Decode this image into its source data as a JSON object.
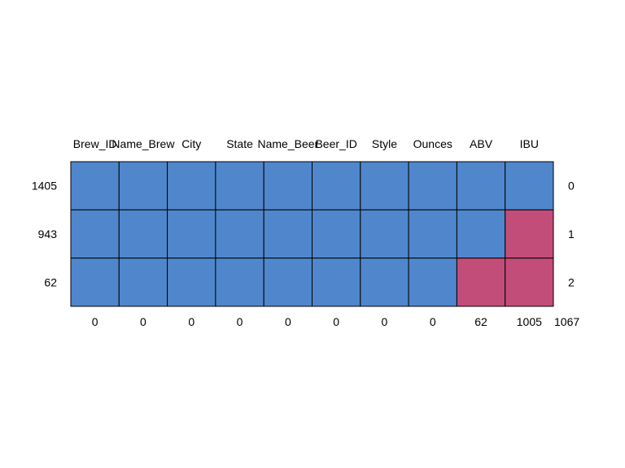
{
  "chart_data": {
    "type": "heatmap",
    "title": "",
    "columns": [
      "Brew_ID",
      "Name_Brew",
      "City",
      "State",
      "Name_Beer",
      "Beer_ID",
      "Style",
      "Ounces",
      "ABV",
      "IBU"
    ],
    "rows": [
      {
        "frequency": 1405,
        "missing_count": 0,
        "pattern": [
          0,
          0,
          0,
          0,
          0,
          0,
          0,
          0,
          0,
          0
        ]
      },
      {
        "frequency": 943,
        "missing_count": 1,
        "pattern": [
          0,
          0,
          0,
          0,
          0,
          0,
          0,
          0,
          0,
          1
        ]
      },
      {
        "frequency": 62,
        "missing_count": 2,
        "pattern": [
          0,
          0,
          0,
          0,
          0,
          0,
          0,
          0,
          1,
          1
        ]
      }
    ],
    "column_missing_totals": [
      0,
      0,
      0,
      0,
      0,
      0,
      0,
      0,
      62,
      1005
    ],
    "grand_total_missing": 1067,
    "colors": {
      "observed": "#5087CC",
      "missing": "#C24D79",
      "border": "#000000"
    }
  }
}
